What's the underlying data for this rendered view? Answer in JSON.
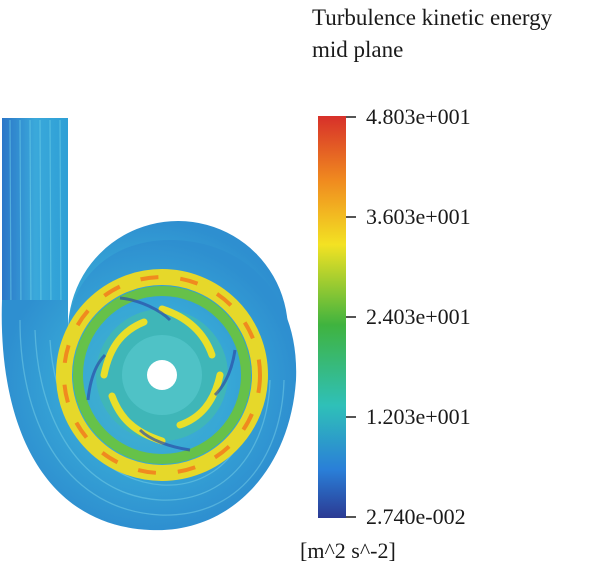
{
  "title_line1": "Turbulence kinetic energy",
  "title_line2": "mid plane",
  "colorbar": {
    "labels": [
      "4.803e+001",
      "3.603e+001",
      "2.403e+001",
      "1.203e+001",
      "2.740e-002"
    ],
    "unit": "[m^2 s^-2]",
    "colors": [
      "#d7302a",
      "#f08a1f",
      "#f3e223",
      "#3fb33f",
      "#2fc0b8",
      "#2a7fd8",
      "#2b3a93"
    ]
  }
}
